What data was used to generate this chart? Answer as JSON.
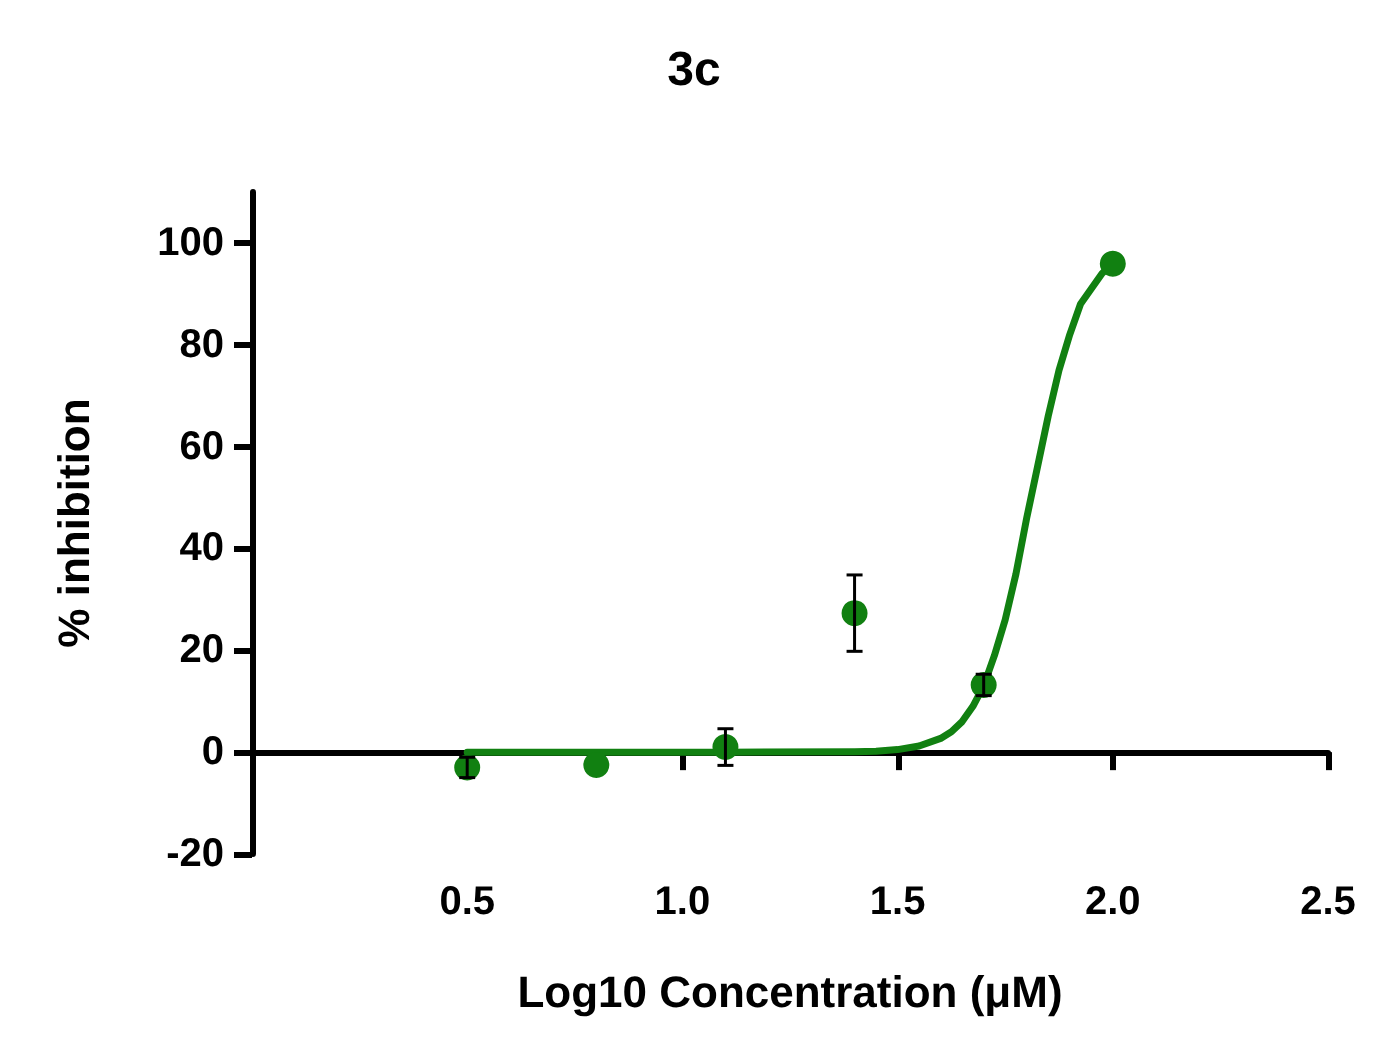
{
  "chart_data": {
    "type": "scatter",
    "title": "3c",
    "xlabel": "Log10 Concentration (μM)",
    "ylabel": "% inhibition",
    "xlim": [
      0,
      2.5
    ],
    "xticks": [
      0.5,
      {
        "value": 1,
        "label": "1.0"
      },
      1.5,
      {
        "value": 2,
        "label": "2.0"
      },
      2.5
    ],
    "ylim": [
      -20,
      110
    ],
    "yticks": [
      -20,
      0,
      20,
      40,
      60,
      80,
      100
    ],
    "marker": "circle",
    "series": [
      {
        "color": "#118011",
        "x": [
          0.5,
          0.8,
          1.1,
          1.4,
          1.7,
          2.0
        ],
        "values": [
          -3,
          -2.5,
          1,
          27.3,
          13.2,
          95.9
        ],
        "errors": [
          2,
          null,
          3.6,
          7.5,
          2.1,
          null
        ]
      },
      {
        "type": "line",
        "color": "#118011",
        "line_style": "solid",
        "marker": "none",
        "x": [
          0.5,
          0.8,
          1.1,
          1.4,
          1.45,
          1.5,
          1.55,
          1.6,
          1.625,
          1.65,
          1.675,
          1.7,
          1.725,
          1.75,
          1.775,
          1.8,
          1.825,
          1.85,
          1.875,
          1.9,
          1.925,
          1.95,
          1.975,
          2.0
        ],
        "values": [
          0,
          0,
          0,
          0.1,
          0.2,
          0.5,
          1.2,
          2.7,
          4,
          6,
          9,
          13,
          19,
          26,
          35,
          46,
          56,
          66,
          75,
          82,
          88,
          91,
          94,
          96
        ]
      }
    ]
  }
}
